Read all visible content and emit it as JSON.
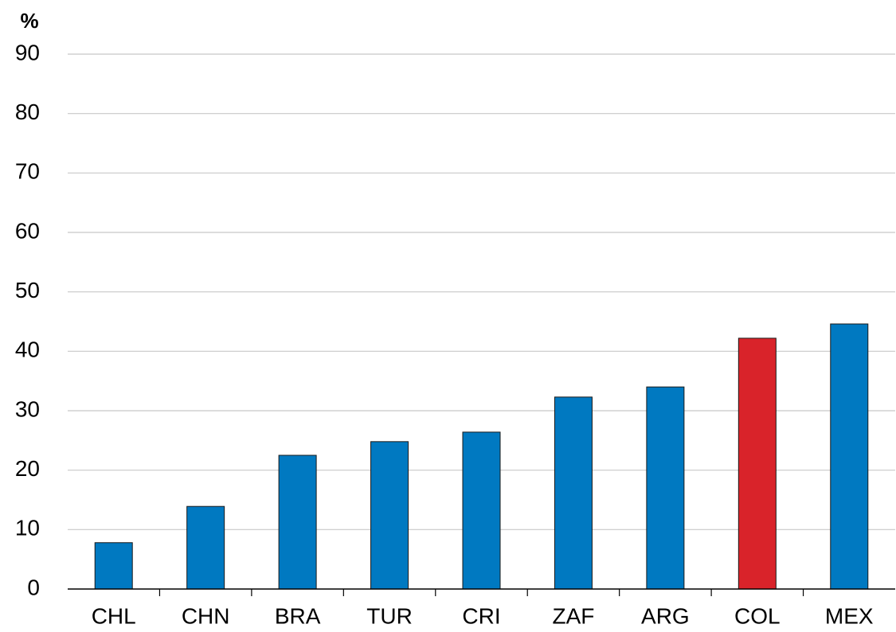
{
  "chart_data": {
    "type": "bar",
    "y_label": "%",
    "categories": [
      "CHL",
      "CHN",
      "BRA",
      "TUR",
      "CRI",
      "ZAF",
      "ARG",
      "COL",
      "MEX"
    ],
    "values": [
      7.8,
      13.9,
      22.5,
      24.8,
      26.4,
      32.3,
      34.0,
      42.2,
      44.6
    ],
    "colors": [
      "#0079c1",
      "#0079c1",
      "#0079c1",
      "#0079c1",
      "#0079c1",
      "#0079c1",
      "#0079c1",
      "#d9232a",
      "#0079c1"
    ],
    "ylim": [
      0,
      90
    ],
    "yticks": [
      0,
      10,
      20,
      30,
      40,
      50,
      60,
      70,
      80,
      90
    ],
    "grid": true
  }
}
